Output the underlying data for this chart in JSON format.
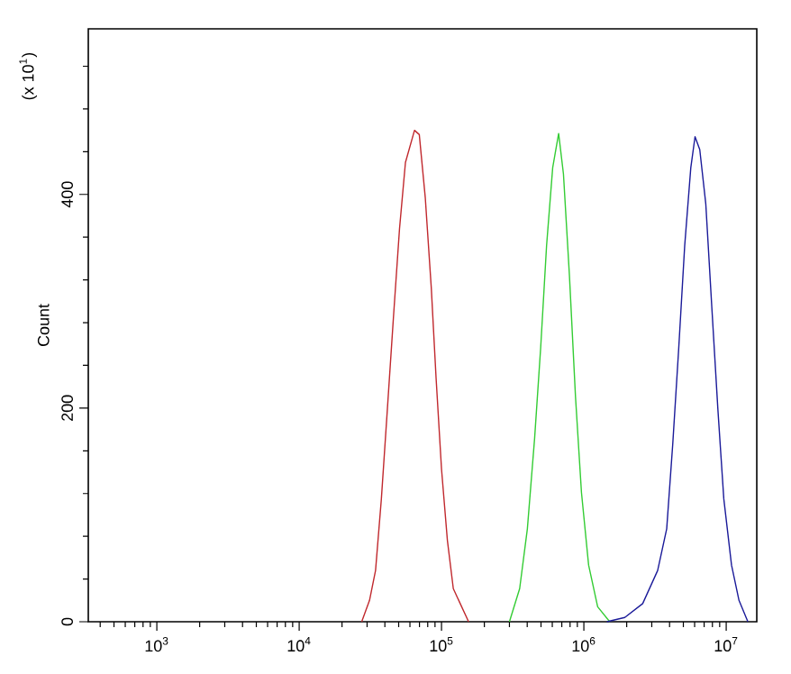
{
  "chart_data": {
    "type": "line",
    "ylabel": "Count",
    "log": "x",
    "xlim": [
      330,
      16400000
    ],
    "ylim": [
      0,
      555
    ],
    "annotations": [
      "(x 10$^{1}$)"
    ],
    "xticks": [
      {
        "value": 400,
        "label": null
      },
      {
        "value": 500,
        "label": null
      },
      {
        "value": 600,
        "label": null
      },
      {
        "value": 700,
        "label": null
      },
      {
        "value": 800,
        "label": null
      },
      {
        "value": 900,
        "label": null
      },
      {
        "value": 1000,
        "label": "10$^{3}$"
      },
      {
        "value": 2000,
        "label": null
      },
      {
        "value": 3000,
        "label": null
      },
      {
        "value": 4000,
        "label": null
      },
      {
        "value": 5000,
        "label": null
      },
      {
        "value": 6000,
        "label": null
      },
      {
        "value": 7000,
        "label": null
      },
      {
        "value": 8000,
        "label": null
      },
      {
        "value": 9000,
        "label": null
      },
      {
        "value": 10000,
        "label": "10$^{4}$"
      },
      {
        "value": 20000,
        "label": null
      },
      {
        "value": 30000,
        "label": null
      },
      {
        "value": 40000,
        "label": null
      },
      {
        "value": 50000,
        "label": null
      },
      {
        "value": 60000,
        "label": null
      },
      {
        "value": 70000,
        "label": null
      },
      {
        "value": 80000,
        "label": null
      },
      {
        "value": 90000,
        "label": null
      },
      {
        "value": 100000,
        "label": "10$^{5}$"
      },
      {
        "value": 200000,
        "label": null
      },
      {
        "value": 300000,
        "label": null
      },
      {
        "value": 400000,
        "label": null
      },
      {
        "value": 500000,
        "label": null
      },
      {
        "value": 600000,
        "label": null
      },
      {
        "value": 700000,
        "label": null
      },
      {
        "value": 800000,
        "label": null
      },
      {
        "value": 900000,
        "label": null
      },
      {
        "value": 1000000,
        "label": "10$^{6}$"
      },
      {
        "value": 2000000,
        "label": null
      },
      {
        "value": 3000000,
        "label": null
      },
      {
        "value": 4000000,
        "label": null
      },
      {
        "value": 5000000,
        "label": null
      },
      {
        "value": 6000000,
        "label": null
      },
      {
        "value": 7000000,
        "label": null
      },
      {
        "value": 8000000,
        "label": null
      },
      {
        "value": 9000000,
        "label": null
      },
      {
        "value": 10000000,
        "label": "10$^{7}$"
      }
    ],
    "yticks": [
      0,
      {
        "value": 40,
        "label": null
      },
      {
        "value": 80,
        "label": null
      },
      {
        "value": 120,
        "label": null
      },
      {
        "value": 160,
        "label": null
      },
      200,
      {
        "value": 240,
        "label": null
      },
      {
        "value": 280,
        "label": null
      },
      {
        "value": 320,
        "label": null
      },
      {
        "value": 360,
        "label": null
      },
      400,
      {
        "value": 440,
        "label": null
      },
      {
        "value": 480,
        "label": null
      },
      {
        "value": 520,
        "label": null
      }
    ],
    "series": [
      {
        "color": "#c0282d",
        "x": [
          27500,
          31200,
          34400,
          37800,
          41700,
          45900,
          50700,
          55800,
          64600,
          69800,
          76900,
          84800,
          91600,
          100000,
          110000,
          121000,
          155000
        ],
        "values": [
          0,
          20,
          48,
          115,
          200,
          284,
          368,
          430,
          460,
          456,
          397,
          312,
          228,
          143,
          76,
          31,
          0
        ]
      },
      {
        "color": "#33cc33",
        "x": [
          300000,
          354000,
          401000,
          451000,
          497000,
          547000,
          604000,
          665000,
          719000,
          792000,
          873000,
          962000,
          1080000,
          1250000,
          1520000
        ],
        "values": [
          0,
          31,
          87,
          172,
          256,
          352,
          425,
          457,
          419,
          324,
          211,
          121,
          53,
          14,
          0
        ]
      },
      {
        "color": "#1a1a99",
        "x": [
          1450000,
          1940000,
          2590000,
          3300000,
          3820000,
          4210000,
          4640000,
          5110000,
          5640000,
          6040000,
          6520000,
          7190000,
          7920000,
          8730000,
          9620000,
          10900000,
          12300000,
          14200000
        ],
        "values": [
          0,
          4,
          17,
          48,
          87,
          166,
          256,
          352,
          425,
          454,
          442,
          391,
          295,
          200,
          115,
          53,
          20,
          0
        ]
      }
    ]
  }
}
